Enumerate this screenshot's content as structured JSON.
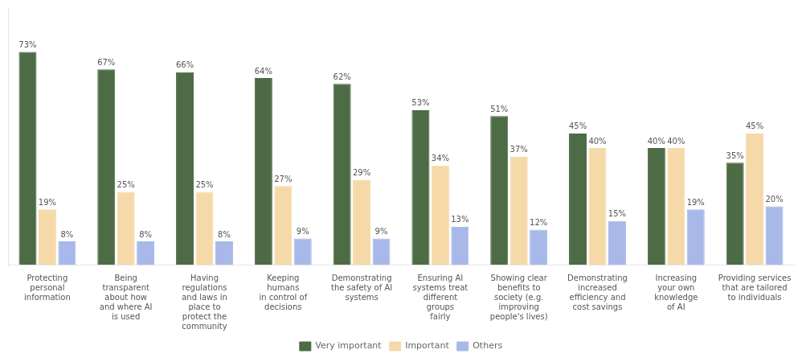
{
  "chart_data": {
    "type": "bar",
    "categories": [
      "Protecting\npersonal\ninformation",
      "Being\ntransparent\nabout how\nand where AI\nis used",
      "Having\nregulations\nand laws in\nplace to\nprotect the\ncommunity",
      "Keeping\nhumans\nin control of\ndecisions",
      "Demonstrating\nthe safety of AI\nsystems",
      "Ensuring AI\nsystems treat\ndifferent\ngroups\nfairly",
      "Showing clear\nbenefits to\nsociety (e.g.\nimproving\npeople's lives)",
      "Demonstrating\nincreased\nefficiency and\ncost savings",
      "Increasing\nyour own\nknowledge\nof AI",
      "Providing services\nthat are tailored\nto individuals"
    ],
    "series": [
      {
        "name": "Very important",
        "color": "#4d6b44",
        "values": [
          73,
          67,
          66,
          64,
          62,
          53,
          51,
          45,
          40,
          35
        ],
        "value_labels": [
          "73%",
          "67%",
          "66%",
          "64%",
          "62%",
          "53%",
          "51%",
          "45%",
          "40%",
          "35%"
        ]
      },
      {
        "name": "Important",
        "color": "#f5d9a8",
        "values": [
          19,
          25,
          25,
          27,
          29,
          34,
          37,
          40,
          40,
          45
        ],
        "value_labels": [
          "19%",
          "25%",
          "25%",
          "27%",
          "29%",
          "34%",
          "37%",
          "40%",
          "40%",
          "45%"
        ]
      },
      {
        "name": "Others",
        "color": "#a8b8e8",
        "values": [
          8,
          8,
          8,
          9,
          9,
          13,
          12,
          15,
          19,
          20
        ],
        "value_labels": [
          "8%",
          "8%",
          "8%",
          "9%",
          "9%",
          "13%",
          "12%",
          "15%",
          "19%",
          "20%"
        ]
      }
    ],
    "ylim": [
      0,
      88
    ],
    "grid": false,
    "legend": "bottom",
    "data_labels": true,
    "tick_labels": "x"
  }
}
